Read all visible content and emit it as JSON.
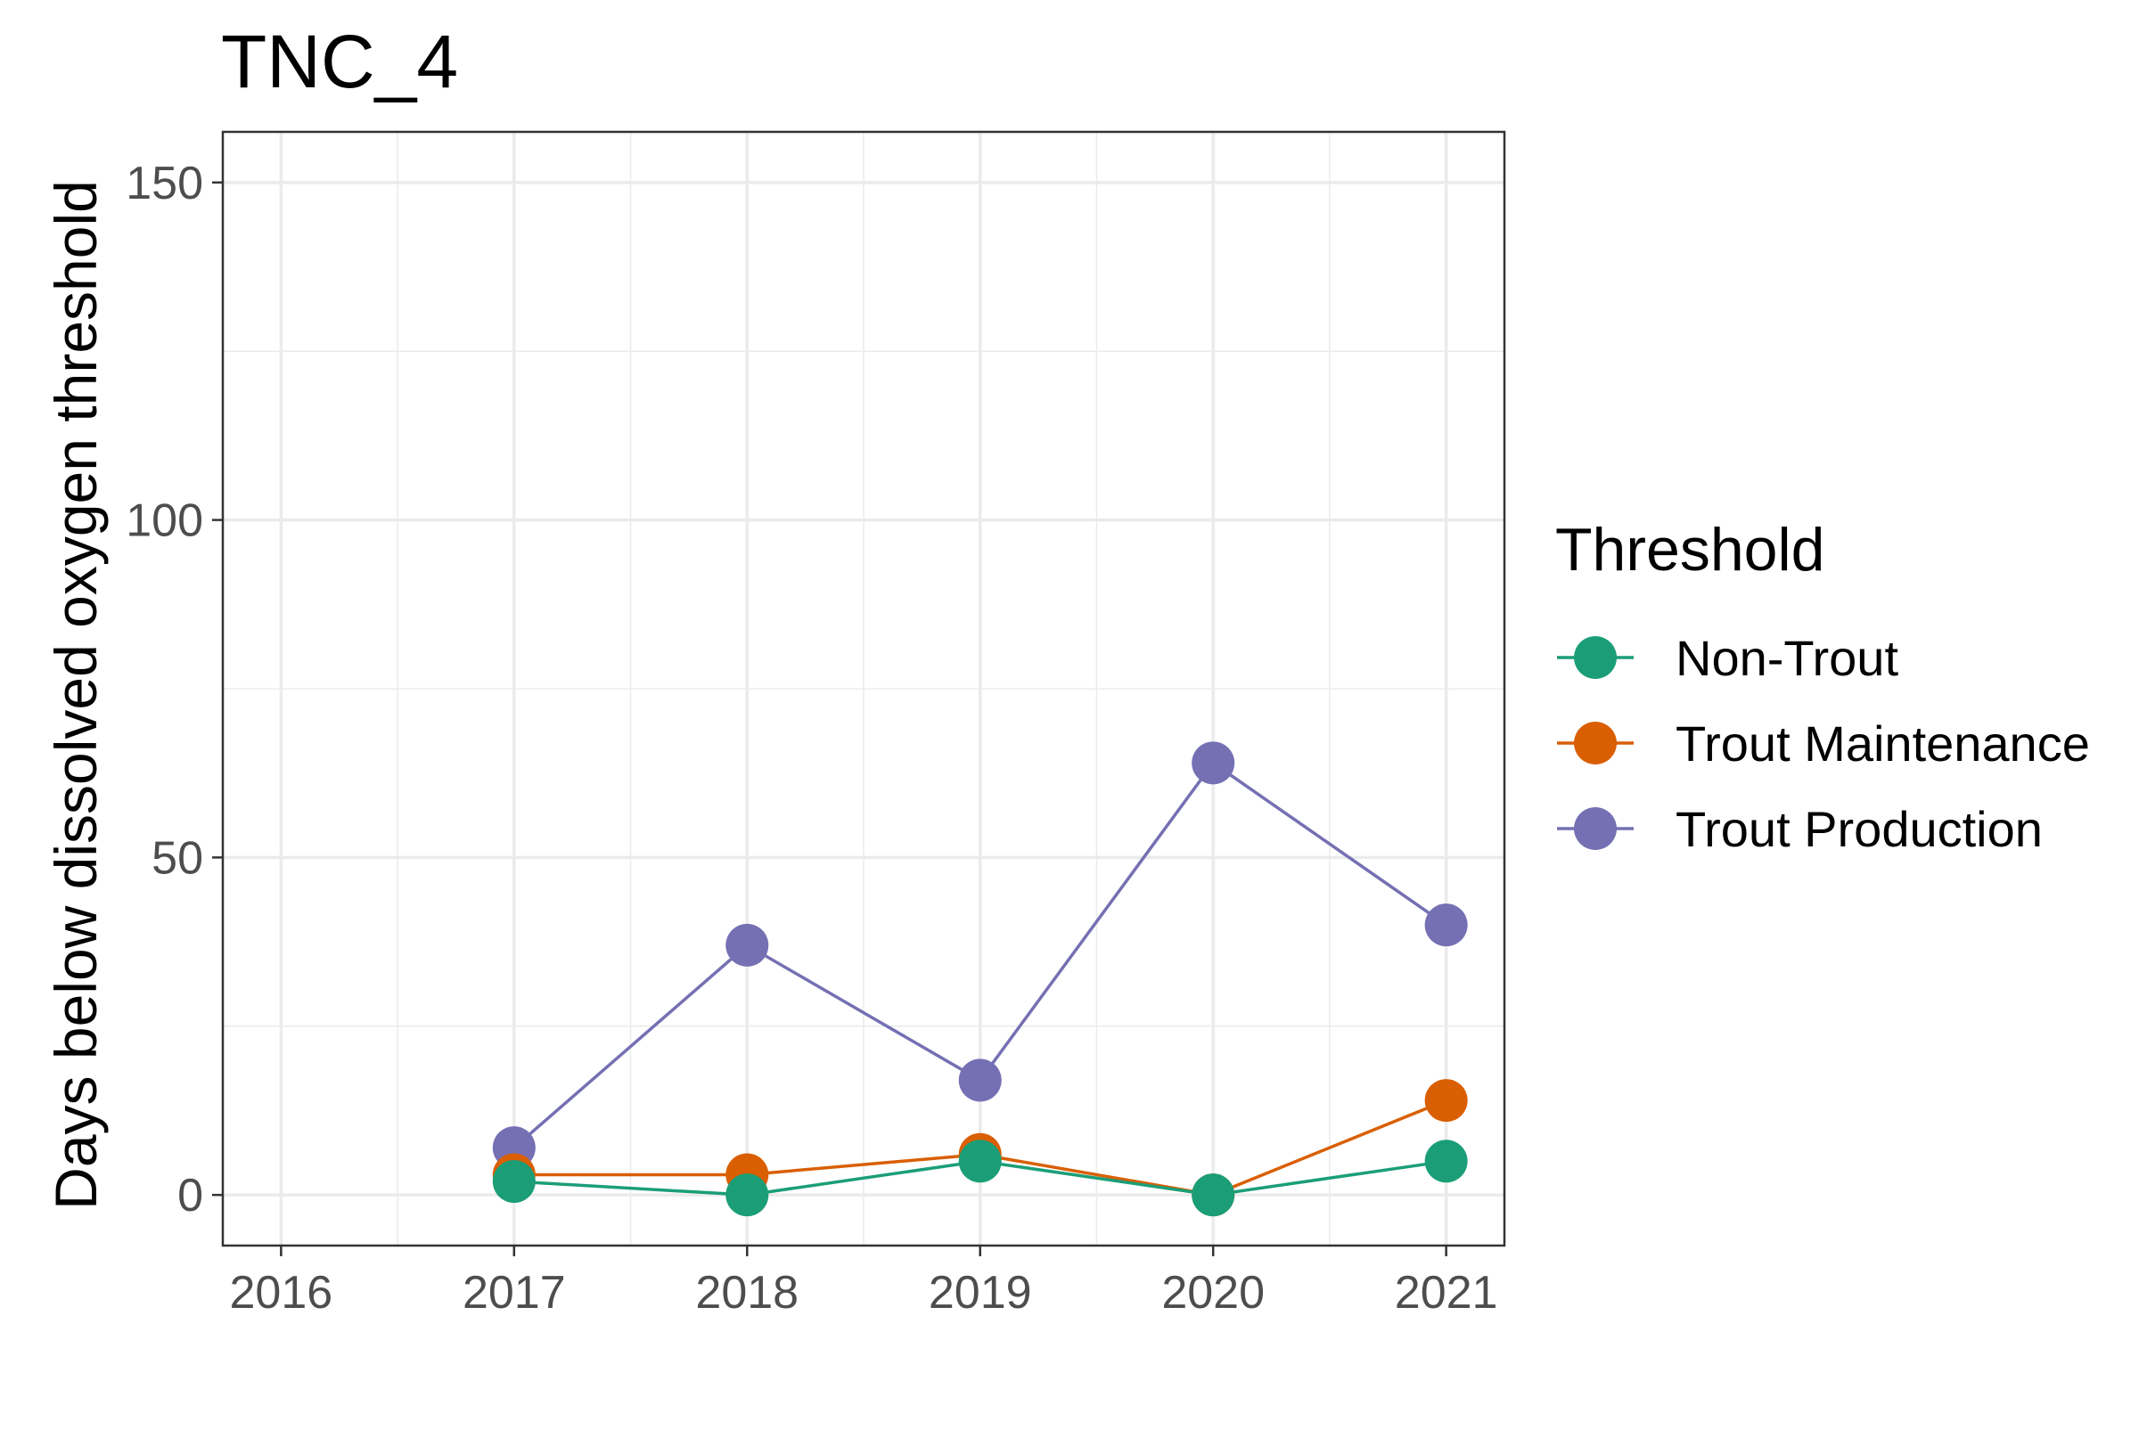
{
  "chart_data": {
    "type": "line",
    "title": "TNC_4",
    "xlabel": "",
    "ylabel": "Days below dissolved oxygen threshold",
    "x": [
      2016,
      2017,
      2018,
      2019,
      2020,
      2021
    ],
    "x_tick_labels": [
      "2016",
      "2017",
      "2018",
      "2019",
      "2020",
      "2021"
    ],
    "y_ticks": [
      0,
      50,
      100,
      150
    ],
    "y_tick_labels": [
      "0",
      "50",
      "100",
      "150"
    ],
    "xlim": [
      2015.75,
      2021.25
    ],
    "ylim": [
      -7.5,
      157.5
    ],
    "grid": true,
    "legend": {
      "title": "Threshold",
      "position": "right"
    },
    "series": [
      {
        "name": "Non-Trout",
        "color": "#1b9e77",
        "x": [
          2017,
          2018,
          2019,
          2020,
          2021
        ],
        "values": [
          2,
          0,
          5,
          0,
          5
        ]
      },
      {
        "name": "Trout Maintenance",
        "color": "#d95f02",
        "x": [
          2017,
          2018,
          2019,
          2020,
          2021
        ],
        "values": [
          3,
          3,
          6,
          0,
          14
        ]
      },
      {
        "name": "Trout Production",
        "color": "#7570b3",
        "x": [
          2017,
          2018,
          2019,
          2020,
          2021
        ],
        "values": [
          7,
          37,
          17,
          64,
          40
        ]
      }
    ]
  }
}
